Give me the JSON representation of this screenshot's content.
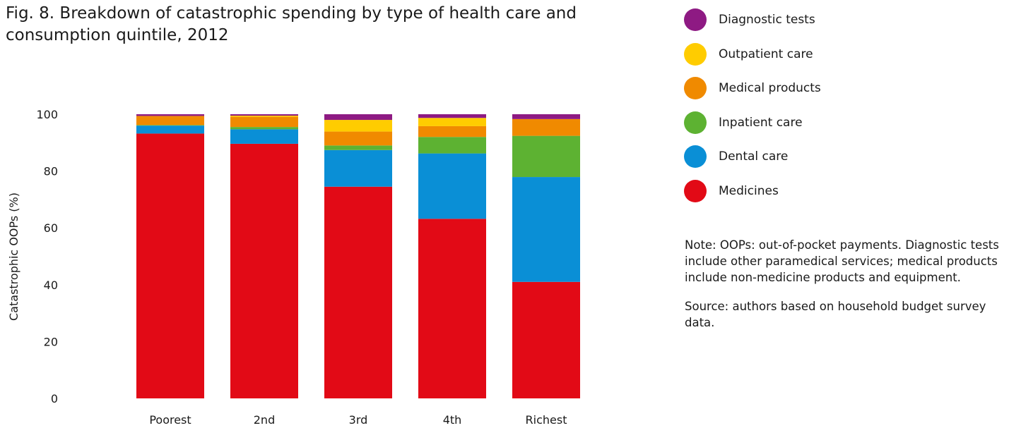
{
  "figure": {
    "title": "Fig. 8. Breakdown of catastrophic spending by type of health care and consumption quintile, 2012",
    "note": "Note: OOPs: out-of-pocket payments. Diagnostic tests include other paramedical services; medical products include non-medicine products and equipment.",
    "source": "Source: authors based on household budget survey data."
  },
  "legend": [
    {
      "label": "Diagnostic tests",
      "color": "#8e1a83"
    },
    {
      "label": "Outpatient care",
      "color": "#ffcc00"
    },
    {
      "label": "Medical products",
      "color": "#f08a00"
    },
    {
      "label": "Inpatient care",
      "color": "#5db232"
    },
    {
      "label": "Dental care",
      "color": "#0a8fd6"
    },
    {
      "label": "Medicines",
      "color": "#e20a16"
    }
  ],
  "chart_data": {
    "type": "bar",
    "stacked": true,
    "title": "Fig. 8. Breakdown of catastrophic spending by type of health care and consumption quintile, 2012",
    "xlabel": "",
    "ylabel": "Catastrophic OOPs (%)",
    "ylim": [
      0,
      100
    ],
    "yticks": [
      "0",
      "20",
      "40",
      "60",
      "80",
      "100"
    ],
    "grid": false,
    "legend_position": "top-right",
    "categories": [
      "Poorest",
      "2nd",
      "3rd",
      "4th",
      "Richest"
    ],
    "series": [
      {
        "name": "Medicines",
        "color": "#e20a16",
        "values": [
          93.2,
          89.6,
          74.5,
          63.2,
          41.0
        ]
      },
      {
        "name": "Dental care",
        "color": "#0a8fd6",
        "values": [
          2.8,
          5.1,
          12.9,
          23.0,
          36.9
        ]
      },
      {
        "name": "Inpatient care",
        "color": "#5db232",
        "values": [
          0.2,
          0.8,
          1.6,
          5.8,
          14.5
        ]
      },
      {
        "name": "Medical products",
        "color": "#f08a00",
        "values": [
          3.2,
          3.6,
          4.9,
          3.8,
          5.9
        ]
      },
      {
        "name": "Outpatient care",
        "color": "#ffcc00",
        "values": [
          0.0,
          0.4,
          4.1,
          2.9,
          0.0
        ]
      },
      {
        "name": "Diagnostic tests",
        "color": "#8e1a83",
        "values": [
          0.6,
          0.5,
          2.0,
          1.3,
          1.7
        ]
      }
    ]
  }
}
